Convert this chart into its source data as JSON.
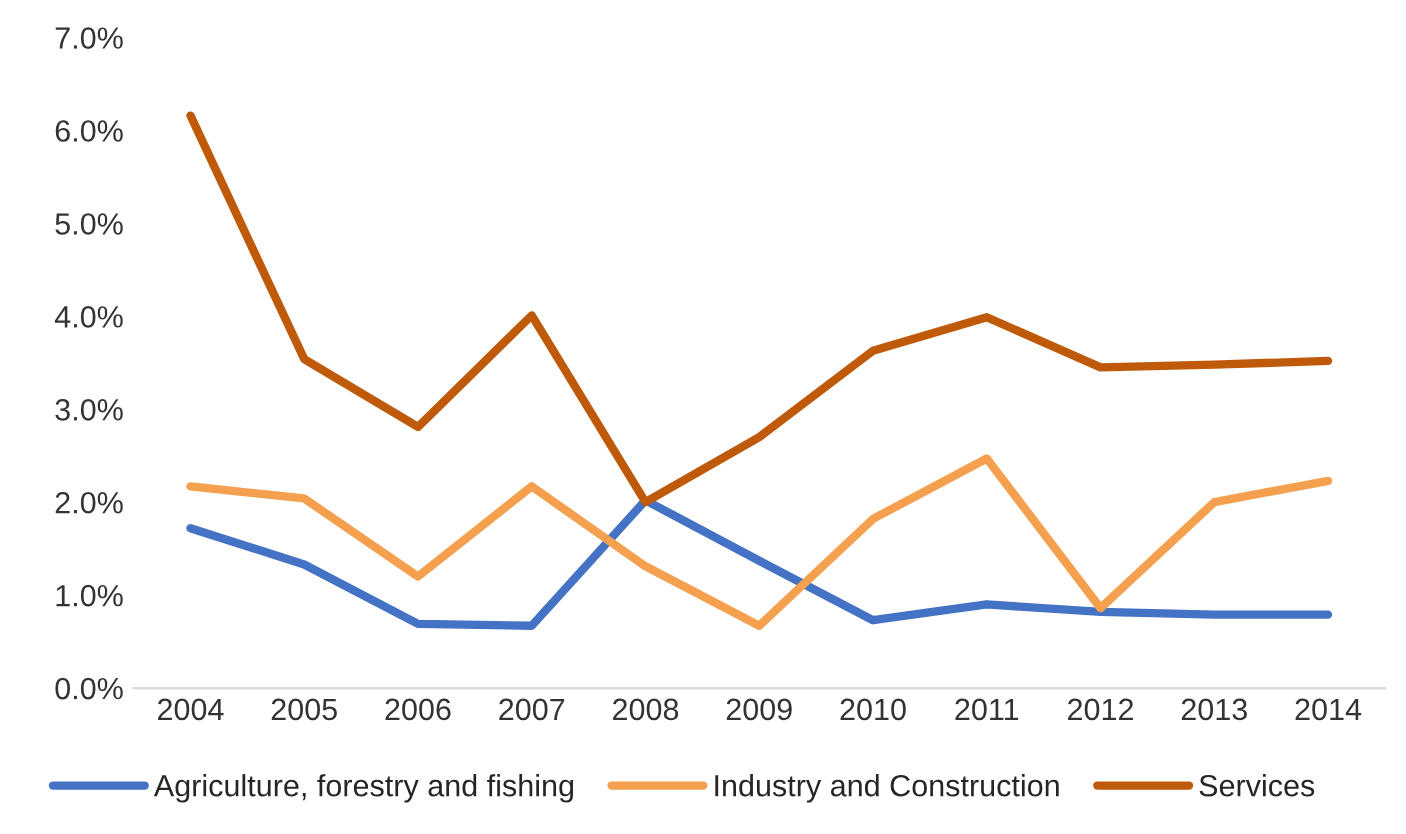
{
  "chart_data": {
    "type": "line",
    "categories": [
      "2004",
      "2005",
      "2006",
      "2007",
      "2008",
      "2009",
      "2010",
      "2011",
      "2012",
      "2013",
      "2014"
    ],
    "series": [
      {
        "name": "Agriculture, forestry and fishing",
        "color": "#4472c4",
        "values": [
          1.72,
          1.33,
          0.69,
          0.67,
          2.02,
          1.37,
          0.73,
          0.9,
          0.82,
          0.79,
          0.79
        ]
      },
      {
        "name": "Industry and Construction",
        "color": "#f4a04f",
        "values": [
          2.17,
          2.04,
          1.2,
          2.17,
          1.31,
          0.67,
          1.82,
          2.47,
          0.86,
          2.0,
          2.23
        ]
      },
      {
        "name": "Services",
        "color": "#c05a0b",
        "values": [
          6.16,
          3.54,
          2.81,
          4.01,
          2.0,
          2.7,
          3.63,
          3.99,
          3.45,
          3.48,
          3.52
        ]
      }
    ],
    "ylim": [
      0,
      7
    ],
    "yticks": [
      {
        "value": 0,
        "label": "0.0%"
      },
      {
        "value": 1,
        "label": "1.0%"
      },
      {
        "value": 2,
        "label": "2.0%"
      },
      {
        "value": 3,
        "label": "3.0%"
      },
      {
        "value": 4,
        "label": "4.0%"
      },
      {
        "value": 5,
        "label": "5.0%"
      },
      {
        "value": 6,
        "label": "6.0%"
      },
      {
        "value": 7,
        "label": "7.0%"
      }
    ],
    "legend": "bottom",
    "line_style": "solid"
  }
}
